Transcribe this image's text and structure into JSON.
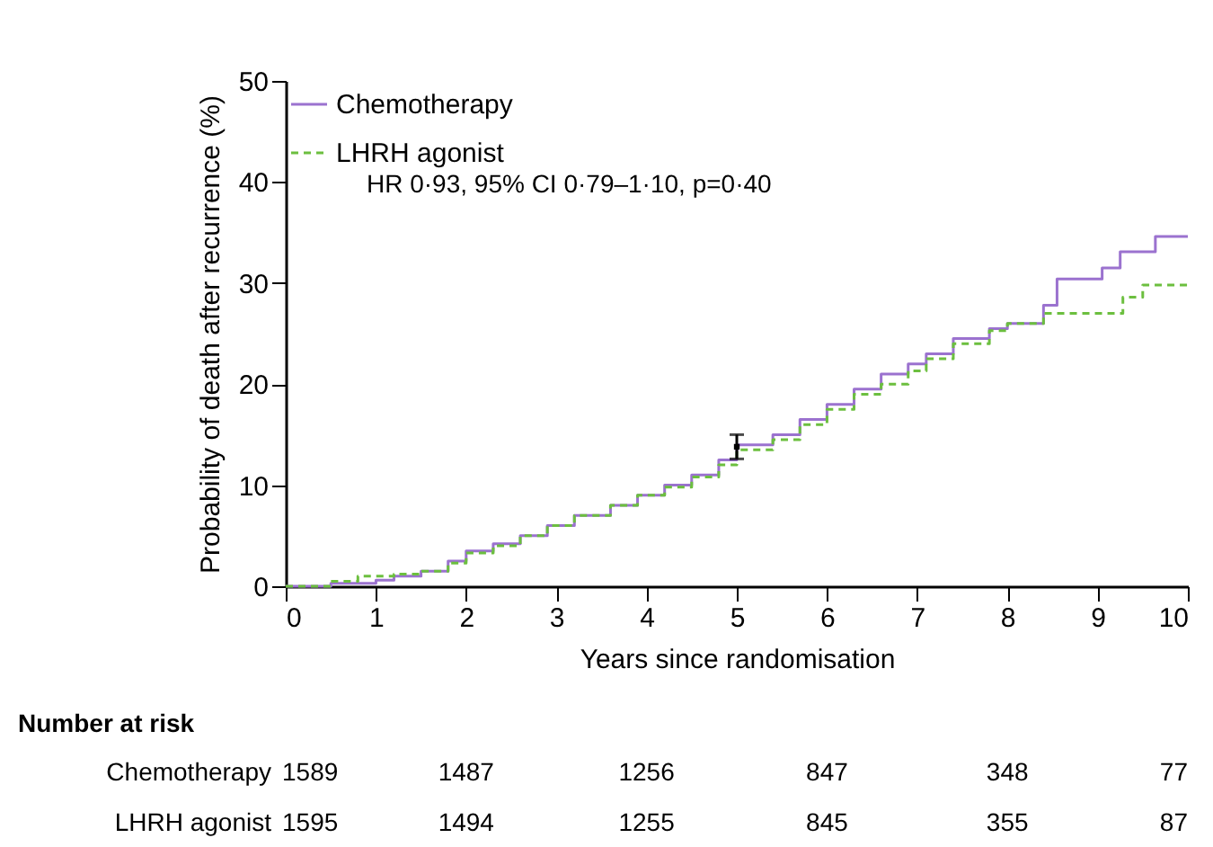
{
  "chart_data": {
    "type": "step",
    "xlabel": "Years since randomisation",
    "ylabel": "Probability of death after recurrence (%)",
    "xlim": [
      0,
      10
    ],
    "xticks": [
      0,
      1,
      2,
      3,
      4,
      5,
      6,
      7,
      8,
      9,
      10
    ],
    "ylim": [
      0,
      50
    ],
    "yticks": [
      0,
      10,
      20,
      30,
      40,
      50
    ],
    "grid": false,
    "legend": "top left",
    "series": [
      {
        "name": "Chemotherapy",
        "color": "#9b72cf",
        "line_style": "solid",
        "x": [
          0,
          0.5,
          1.0,
          1.2,
          1.5,
          1.8,
          2.0,
          2.3,
          2.6,
          2.9,
          3.2,
          3.6,
          3.9,
          4.2,
          4.5,
          4.8,
          5.0,
          5.4,
          5.7,
          6.0,
          6.3,
          6.6,
          6.9,
          7.1,
          7.4,
          7.8,
          8.0,
          8.4,
          8.55,
          9.05,
          9.25,
          9.64,
          10
        ],
        "values": [
          0,
          0.3,
          0.6,
          1.0,
          1.5,
          2.5,
          3.5,
          4.2,
          5.0,
          6.0,
          7.0,
          8.0,
          9.0,
          10.0,
          11.0,
          12.5,
          14.0,
          15.0,
          16.5,
          18.0,
          19.5,
          21.0,
          22.0,
          23.0,
          24.5,
          25.5,
          26.0,
          27.8,
          30.4,
          31.5,
          33.1,
          34.6,
          34.6
        ]
      },
      {
        "name": "LHRH agonist",
        "color": "#6cbf3f",
        "line_style": "dashed",
        "x": [
          0,
          0.5,
          0.8,
          1.2,
          1.5,
          1.8,
          2.0,
          2.3,
          2.6,
          2.9,
          3.2,
          3.6,
          3.9,
          4.2,
          4.5,
          4.8,
          5.0,
          5.4,
          5.7,
          6.0,
          6.3,
          6.6,
          6.9,
          7.1,
          7.4,
          7.8,
          8.0,
          8.4,
          9.28,
          9.5,
          10
        ],
        "values": [
          0,
          0.5,
          1.0,
          1.2,
          1.5,
          2.3,
          3.3,
          4.0,
          5.0,
          6.0,
          7.0,
          8.0,
          9.0,
          9.8,
          10.8,
          12.0,
          13.5,
          14.5,
          16.0,
          17.5,
          19.0,
          20.0,
          21.3,
          22.5,
          24.0,
          25.3,
          26.0,
          27.0,
          28.6,
          29.8,
          29.8
        ]
      },
      {
        "type": "scatter",
        "color": "#000000",
        "marker": "square",
        "x": [
          5
        ],
        "values": [
          13.8
        ],
        "errors": [
          [
            12.6,
            15.0
          ]
        ]
      }
    ],
    "annotations": [
      "HR 0·93, 95% CI 0·79–1·10, p=0·40",
      "Number at risk",
      "Chemotherapy",
      "1589",
      "1487",
      "1256",
      "847",
      "348",
      "77",
      "LHRH agonist",
      "1595",
      "1494",
      "1255",
      "845",
      "355",
      "87"
    ]
  }
}
